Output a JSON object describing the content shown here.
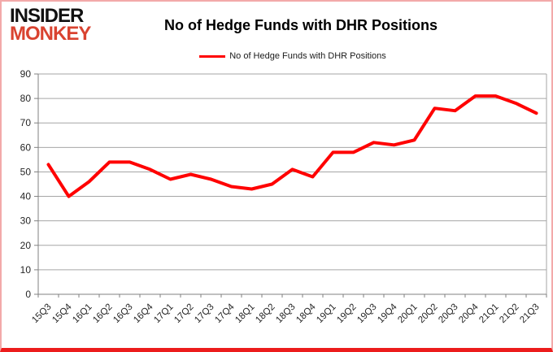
{
  "logo": {
    "line1": "INSIDER",
    "line2": "MONKEY"
  },
  "header": {
    "title": "No of Hedge Funds with DHR Positions"
  },
  "legend": {
    "label": "No of Hedge Funds with DHR Positions",
    "line_color": "#ff0000"
  },
  "colors": {
    "series_line": "#ff0000",
    "gridline": "#a6a6a6",
    "axis": "#808080",
    "tick_label": "#262626",
    "frame_border": "#f3a9a9",
    "bottom_bar": "#ec1c1c",
    "logo_red": "#d94330"
  },
  "chart_data": {
    "type": "line",
    "title": "No of Hedge Funds with DHR Positions",
    "categories": [
      "15Q3",
      "15Q4",
      "16Q1",
      "16Q2",
      "16Q3",
      "16Q4",
      "17Q1",
      "17Q2",
      "17Q3",
      "17Q4",
      "18Q1",
      "18Q2",
      "18Q3",
      "18Q4",
      "19Q1",
      "19Q2",
      "19Q3",
      "19Q4",
      "20Q1",
      "20Q2",
      "20Q3",
      "20Q4",
      "21Q1",
      "21Q2",
      "21Q3"
    ],
    "series": [
      {
        "name": "No of Hedge Funds with DHR Positions",
        "color": "#ff0000",
        "values": [
          53,
          40,
          46,
          54,
          54,
          51,
          47,
          49,
          47,
          44,
          43,
          45,
          51,
          48,
          58,
          58,
          62,
          61,
          63,
          76,
          75,
          81,
          81,
          78,
          74
        ]
      }
    ],
    "xlabel": "",
    "ylabel": "",
    "ylim": [
      0,
      90
    ],
    "yticks": [
      0,
      10,
      20,
      30,
      40,
      50,
      60,
      70,
      80,
      90
    ],
    "grid": true,
    "legend_position": "top"
  }
}
